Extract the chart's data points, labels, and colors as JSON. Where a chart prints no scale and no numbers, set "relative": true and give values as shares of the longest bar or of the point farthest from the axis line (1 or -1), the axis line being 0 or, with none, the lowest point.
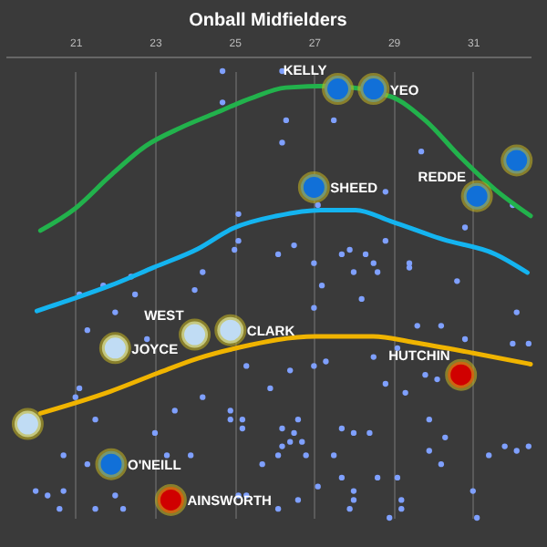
{
  "chart_data": {
    "type": "scatter",
    "title": "Onball Midfielders",
    "relative": true,
    "xlim": [
      19.24,
      32.45
    ],
    "xticks": [
      21,
      23,
      25,
      27,
      29,
      31
    ],
    "grid": "x",
    "tick_labels": "x",
    "line_style": "solid",
    "series": [
      {
        "color": "#7fa0ff",
        "x": [
          24.7,
          26.2,
          24.7,
          26.3,
          27.5,
          26.2,
          29.7,
          28.8,
          27.1,
          25.1,
          30.8,
          32.0,
          25.1,
          25.0,
          26.5,
          26.1,
          28.8,
          27.9,
          27.7,
          28.3,
          28.5,
          27.0,
          29.4,
          24.2,
          22.4,
          21.7,
          21.1,
          22.5,
          24.0,
          27.2,
          28.0,
          28.6,
          29.4,
          30.6,
          28.2,
          27.0,
          22.0,
          32.1,
          21.3,
          22.8,
          29.6,
          30.2,
          30.8,
          32.0,
          32.4,
          28.5,
          29.1,
          27.3,
          27.0,
          26.4,
          25.3,
          29.8,
          30.1,
          28.8,
          29.3,
          25.9,
          21.1,
          21.0,
          24.2,
          23.5,
          24.9,
          25.2,
          24.9,
          21.5,
          26.6,
          29.9,
          27.7,
          28.0,
          28.4,
          25.2,
          26.2,
          26.5,
          23.0,
          26.4,
          30.3,
          26.7,
          26.2,
          26.1,
          31.8,
          32.1,
          32.4,
          29.9,
          27.5,
          26.8,
          31.4,
          30.2,
          25.7,
          20.7,
          21.3,
          23.3,
          23.9,
          27.7,
          28.6,
          29.1,
          27.1,
          28.0,
          20.0,
          20.3,
          20.7,
          22.0,
          25.1,
          25.3,
          26.6,
          28.0,
          29.2,
          31.0,
          20.6,
          21.5,
          22.2,
          26.1,
          27.9,
          29.2,
          28.9,
          31.1
        ],
        "values": [
          1.0,
          1.0,
          0.93,
          0.89,
          0.89,
          0.84,
          0.82,
          0.73,
          0.7,
          0.68,
          0.65,
          0.7,
          0.62,
          0.6,
          0.61,
          0.59,
          0.62,
          0.6,
          0.59,
          0.59,
          0.57,
          0.57,
          0.57,
          0.55,
          0.54,
          0.52,
          0.5,
          0.5,
          0.51,
          0.52,
          0.55,
          0.55,
          0.56,
          0.53,
          0.49,
          0.47,
          0.46,
          0.46,
          0.42,
          0.4,
          0.43,
          0.43,
          0.4,
          0.39,
          0.39,
          0.36,
          0.38,
          0.35,
          0.34,
          0.33,
          0.34,
          0.32,
          0.31,
          0.3,
          0.28,
          0.29,
          0.29,
          0.27,
          0.27,
          0.24,
          0.24,
          0.22,
          0.22,
          0.22,
          0.22,
          0.22,
          0.2,
          0.19,
          0.19,
          0.2,
          0.2,
          0.19,
          0.19,
          0.17,
          0.18,
          0.17,
          0.16,
          0.14,
          0.16,
          0.15,
          0.16,
          0.15,
          0.14,
          0.14,
          0.14,
          0.12,
          0.12,
          0.14,
          0.12,
          0.14,
          0.14,
          0.09,
          0.09,
          0.09,
          0.07,
          0.06,
          0.06,
          0.05,
          0.06,
          0.05,
          0.05,
          0.05,
          0.04,
          0.04,
          0.04,
          0.06,
          0.02,
          0.02,
          0.02,
          0.02,
          0.02,
          0.02,
          0,
          0
        ]
      },
      {
        "type": "line",
        "color": "#22b24c",
        "x": [
          20.12,
          21,
          21.88,
          22.76,
          23.64,
          24.52,
          25.41,
          26.29,
          27.39,
          28.93,
          29.81,
          30.69,
          31.57,
          32.45
        ],
        "values": [
          0.643,
          0.693,
          0.766,
          0.832,
          0.873,
          0.906,
          0.939,
          0.963,
          0.967,
          0.943,
          0.889,
          0.807,
          0.734,
          0.676
        ]
      },
      {
        "type": "line",
        "color": "#14b4f0",
        "x": [
          20.03,
          21,
          21.88,
          22.98,
          24.08,
          24.96,
          26.07,
          27.17,
          28.05,
          28.93,
          30.25,
          31.57,
          32.37
        ],
        "values": [
          0.463,
          0.492,
          0.52,
          0.561,
          0.602,
          0.648,
          0.676,
          0.689,
          0.689,
          0.664,
          0.623,
          0.59,
          0.549
        ]
      },
      {
        "type": "line",
        "color": "#f0b400",
        "x": [
          20.12,
          21.88,
          23.07,
          24.08,
          25.1,
          27.04,
          28.49,
          29.5,
          31.0,
          32.45
        ],
        "values": [
          0.234,
          0.283,
          0.324,
          0.357,
          0.381,
          0.406,
          0.406,
          0.393,
          0.369,
          0.344
        ]
      },
      {
        "type": "scatter",
        "name": "KELLY",
        "color": "#1170d8",
        "x": [
          27.6
        ],
        "values": [
          0.96
        ]
      },
      {
        "type": "scatter",
        "name": "YEO",
        "color": "#1170d8",
        "x": [
          28.5
        ],
        "values": [
          0.96
        ]
      },
      {
        "type": "scatter",
        "color": "#1170d8",
        "x": [
          32.1
        ],
        "values": [
          0.8
        ]
      },
      {
        "type": "scatter",
        "name": "SHEED",
        "color": "#1170d8",
        "x": [
          27.0
        ],
        "values": [
          0.74
        ]
      },
      {
        "type": "scatter",
        "name": "REDDE",
        "color": "#1170d8",
        "x": [
          31.1
        ],
        "values": [
          0.72
        ]
      },
      {
        "type": "scatter",
        "name": "WEST",
        "color": "#c0dcf4",
        "x": [
          24.0
        ],
        "values": [
          0.41
        ]
      },
      {
        "type": "scatter",
        "name": "CLARK",
        "color": "#c0dcf4",
        "x": [
          24.9
        ],
        "values": [
          0.42
        ]
      },
      {
        "type": "scatter",
        "name": "JOYCE",
        "color": "#c0dcf4",
        "x": [
          22.0
        ],
        "values": [
          0.38
        ]
      },
      {
        "type": "scatter",
        "color": "#c0dcf4",
        "x": [
          19.8
        ],
        "values": [
          0.21
        ]
      },
      {
        "type": "scatter",
        "name": "O'NEILL",
        "color": "#1170d8",
        "x": [
          21.9
        ],
        "values": [
          0.12
        ]
      },
      {
        "type": "scatter",
        "name": "AINSWORTH",
        "color": "#d00000",
        "x": [
          23.4
        ],
        "values": [
          0.04
        ]
      },
      {
        "type": "scatter",
        "name": "HUTCHIN",
        "color": "#d00000",
        "x": [
          30.7
        ],
        "values": [
          0.32
        ]
      }
    ]
  }
}
